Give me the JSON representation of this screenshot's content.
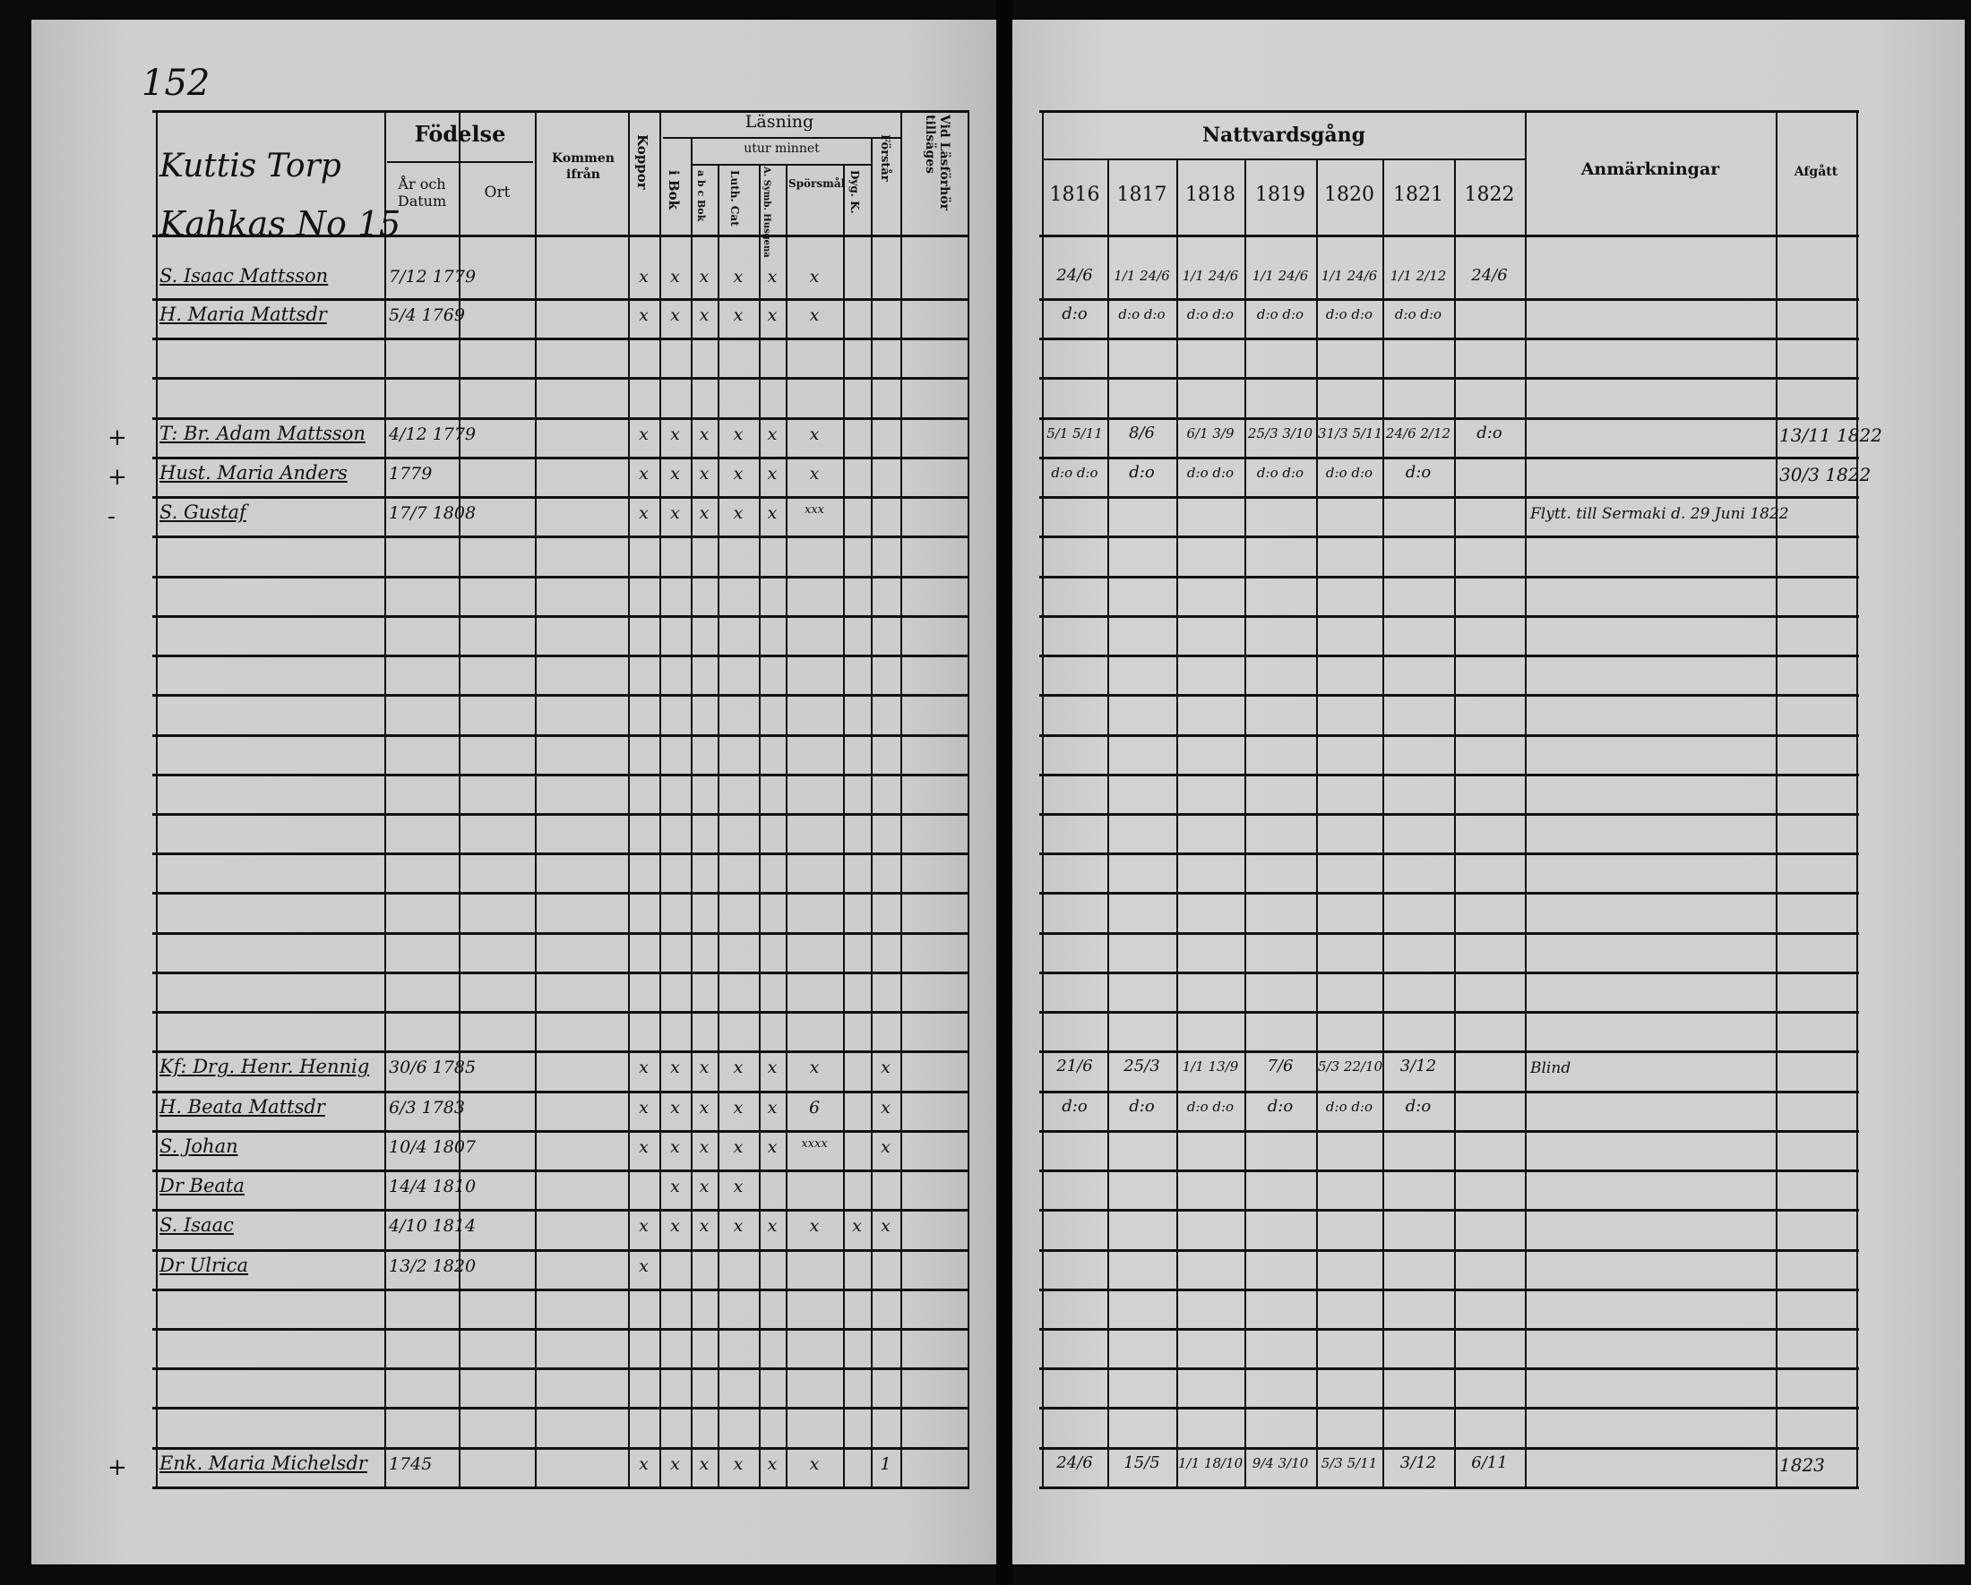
{
  "page_number": "152",
  "household": {
    "line1": "Kuttis Torp",
    "line2": "Kahkas No 15"
  },
  "left_headers": {
    "fodelse": "Födelse",
    "ar_och_datum": "År och Datum",
    "ort": "Ort",
    "kommen_ifran": "Kommen ifrån",
    "koppor": "Koppor",
    "lasning": "Läsning",
    "utur_minnet": "utur minnet",
    "i_bok": "i Bok",
    "abc_bok": "a b c Bok",
    "luth_cat": "Luth. Cat",
    "a_symb": "A. Symb. Husgena",
    "sporsmal": "Spörsmål",
    "dyg_k": "Dyg. K.",
    "forstar": "Förstår",
    "vid_lasforhor": "Vid Läsförhör tillsäges"
  },
  "right_headers": {
    "nattvardsgang": "Nattvardsgång",
    "years": [
      "1816",
      "1817",
      "1818",
      "1819",
      "1820",
      "1821",
      "1822"
    ],
    "anmarkningar": "Anmärkningar",
    "afgatt": "Afgått"
  },
  "margin_marks": [
    {
      "row": 4,
      "mark": "+"
    },
    {
      "row": 5,
      "mark": "+"
    },
    {
      "row": 6,
      "mark": "-"
    },
    {
      "row": 30,
      "mark": "+"
    }
  ],
  "entries": [
    {
      "row": 0,
      "name": "S. Isaac Mattsson",
      "birth": "7/12 1779",
      "reading": [
        "x",
        "x",
        "x",
        "x",
        "x",
        "x",
        "",
        ""
      ],
      "communion": [
        "24/6",
        "1/1 24/6",
        "1/1 24/6",
        "1/1 24/6",
        "1/1 24/6",
        "1/1 2/12",
        "24/6"
      ],
      "remark": "",
      "afgatt": ""
    },
    {
      "row": 1,
      "name": "H. Maria Mattsdr",
      "birth": "5/4 1769",
      "reading": [
        "x",
        "x",
        "x",
        "x",
        "x",
        "x",
        "",
        ""
      ],
      "communion": [
        "d:o",
        "d:o d:o",
        "d:o d:o",
        "d:o d:o",
        "d:o d:o",
        "d:o d:o",
        ""
      ],
      "remark": "",
      "afgatt": ""
    },
    {
      "row": 4,
      "name": "T: Br. Adam Mattsson",
      "birth": "4/12 1779",
      "reading": [
        "x",
        "x",
        "x",
        "x",
        "x",
        "x",
        "",
        ""
      ],
      "communion": [
        "5/1 5/11",
        "8/6",
        "6/1 3/9",
        "25/3 3/10",
        "31/3 5/11",
        "24/6 2/12",
        "d:o"
      ],
      "remark": "",
      "afgatt": "13/11 1822"
    },
    {
      "row": 5,
      "name": "Hust. Maria Anders",
      "birth": "1779",
      "reading": [
        "x",
        "x",
        "x",
        "x",
        "x",
        "x",
        "",
        ""
      ],
      "communion": [
        "d:o d:o",
        "d:o",
        "d:o d:o",
        "d:o d:o",
        "d:o d:o",
        "d:o",
        ""
      ],
      "remark": "",
      "afgatt": "30/3 1822"
    },
    {
      "row": 6,
      "name": "S. Gustaf",
      "birth": "17/7 1808",
      "reading": [
        "x",
        "x",
        "x",
        "x",
        "x",
        "xxx",
        "",
        ""
      ],
      "communion": [
        "",
        "",
        "",
        "",
        "",
        "",
        ""
      ],
      "remark": "Flytt. till Sermaki d. 29 Juni 1822",
      "afgatt": ""
    },
    {
      "row": 20,
      "name": "Kf: Drg. Henr. Hennig",
      "birth": "30/6 1785",
      "reading": [
        "x",
        "x",
        "x",
        "x",
        "x",
        "x",
        "",
        "x"
      ],
      "communion": [
        "21/6",
        "25/3",
        "1/1 13/9",
        "7/6",
        "5/3 22/10",
        "3/12",
        ""
      ],
      "remark": "Blind",
      "afgatt": ""
    },
    {
      "row": 21,
      "name": "H. Beata Mattsdr",
      "birth": "6/3 1783",
      "reading": [
        "x",
        "x",
        "x",
        "x",
        "x",
        "6",
        "",
        "x"
      ],
      "communion": [
        "d:o",
        "d:o",
        "d:o d:o",
        "d:o",
        "d:o d:o",
        "d:o",
        ""
      ],
      "remark": "",
      "afgatt": ""
    },
    {
      "row": 22,
      "name": "S. Johan",
      "birth": "10/4 1807",
      "reading": [
        "x",
        "x",
        "x",
        "x",
        "x",
        "xxxx",
        "",
        "x"
      ],
      "communion": [
        "",
        "",
        "",
        "",
        "",
        "",
        ""
      ],
      "remark": "",
      "afgatt": ""
    },
    {
      "row": 23,
      "name": "Dr Beata",
      "birth": "14/4 1810",
      "reading": [
        "",
        "x",
        "x",
        "x",
        "",
        "",
        "",
        ""
      ],
      "communion": [
        "",
        "",
        "",
        "",
        "",
        "",
        ""
      ],
      "remark": "",
      "afgatt": ""
    },
    {
      "row": 24,
      "name": "S. Isaac",
      "birth": "4/10 1814",
      "reading": [
        "x",
        "x",
        "x",
        "x",
        "x",
        "x",
        "x",
        "x"
      ],
      "communion": [
        "",
        "",
        "",
        "",
        "",
        "",
        ""
      ],
      "remark": "",
      "afgatt": ""
    },
    {
      "row": 25,
      "name": "Dr Ulrica",
      "birth": "13/2 1820",
      "reading": [
        "x",
        "",
        "",
        "",
        "",
        "",
        "",
        ""
      ],
      "communion": [
        "",
        "",
        "",
        "",
        "",
        "",
        ""
      ],
      "remark": "",
      "afgatt": ""
    },
    {
      "row": 30,
      "name": "Enk. Maria Michelsdr",
      "birth": "1745",
      "reading": [
        "x",
        "x",
        "x",
        "x",
        "x",
        "x",
        "",
        "1"
      ],
      "communion": [
        "24/6",
        "15/5",
        "1/1 18/10",
        "9/4 3/10",
        "5/3 5/11",
        "3/12",
        "6/11"
      ],
      "remark": "",
      "afgatt": "1823"
    }
  ]
}
